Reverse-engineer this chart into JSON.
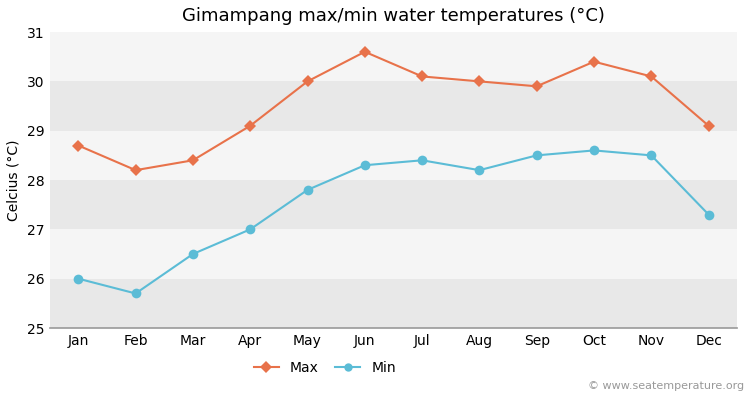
{
  "title": "Gimampang max/min water temperatures (°C)",
  "ylabel": "Celcius (°C)",
  "months": [
    "Jan",
    "Feb",
    "Mar",
    "Apr",
    "May",
    "Jun",
    "Jul",
    "Aug",
    "Sep",
    "Oct",
    "Nov",
    "Dec"
  ],
  "max_values": [
    28.7,
    28.2,
    28.4,
    29.1,
    30.0,
    30.6,
    30.1,
    30.0,
    29.9,
    30.4,
    30.1,
    29.1
  ],
  "min_values": [
    26.0,
    25.7,
    26.5,
    27.0,
    27.8,
    28.3,
    28.4,
    28.2,
    28.5,
    28.6,
    28.5,
    27.3
  ],
  "max_color": "#E8724A",
  "min_color": "#5BBCD6",
  "bg_color": "#ffffff",
  "band_colors": [
    "#e8e8e8",
    "#f5f5f5"
  ],
  "ylim": [
    25,
    31
  ],
  "yticks": [
    25,
    26,
    27,
    28,
    29,
    30,
    31
  ],
  "watermark": "© www.seatemperature.org",
  "legend_labels": [
    "Max",
    "Min"
  ],
  "title_fontsize": 13,
  "label_fontsize": 10,
  "tick_fontsize": 10,
  "watermark_fontsize": 8
}
